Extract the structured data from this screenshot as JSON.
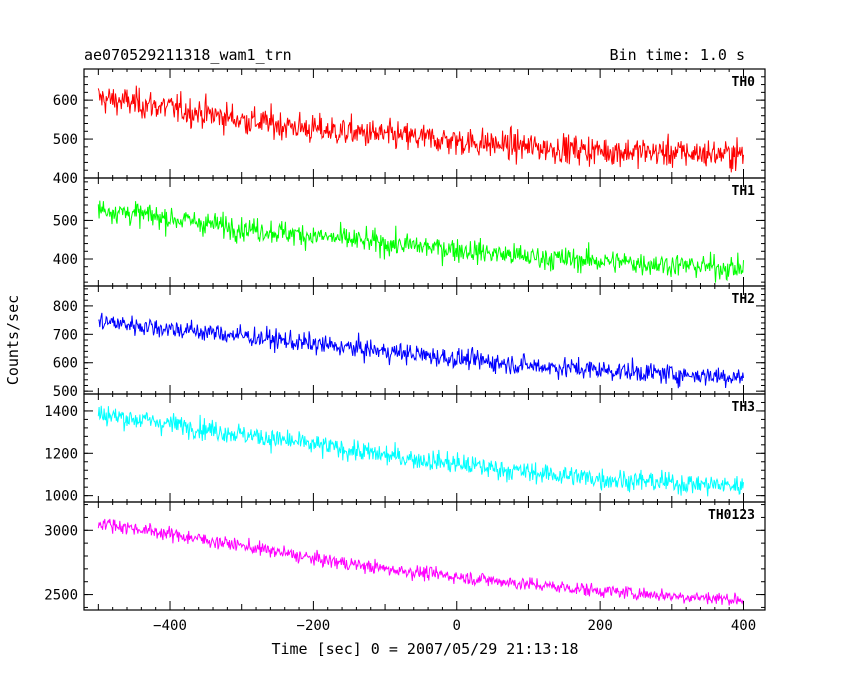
{
  "chart_data": {
    "type": "line",
    "title": "ae070529211318_wam1_trn",
    "subtitle": "Bin time: 1.0 s",
    "xlabel": "Time [sec] 0 = 2007/05/29 21:13:18",
    "ylabel": "Counts/sec",
    "xlim": [
      -520,
      430
    ],
    "x_range": [
      -500,
      400
    ],
    "x_ticks": [
      -400,
      -200,
      0,
      200,
      400
    ],
    "grid": false,
    "panels": [
      {
        "name": "TH0",
        "color": "#ff0000",
        "ylim": [
          400,
          680
        ],
        "y_ticks": [
          400,
          500,
          600
        ],
        "trend": [
          [
            -500,
            605
          ],
          [
            -400,
            580
          ],
          [
            -300,
            550
          ],
          [
            -200,
            525
          ],
          [
            -100,
            510
          ],
          [
            0,
            495
          ],
          [
            100,
            480
          ],
          [
            200,
            470
          ],
          [
            300,
            465
          ],
          [
            400,
            460
          ]
        ],
        "noise": 32
      },
      {
        "name": "TH1",
        "color": "#00ff00",
        "ylim": [
          330,
          610
        ],
        "y_ticks": [
          400,
          500
        ],
        "trend": [
          [
            -500,
            530
          ],
          [
            -400,
            505
          ],
          [
            -300,
            480
          ],
          [
            -200,
            460
          ],
          [
            -100,
            440
          ],
          [
            0,
            425
          ],
          [
            100,
            405
          ],
          [
            200,
            395
          ],
          [
            300,
            385
          ],
          [
            400,
            375
          ]
        ],
        "noise": 26
      },
      {
        "name": "TH2",
        "color": "#0000ff",
        "ylim": [
          490,
          870
        ],
        "y_ticks": [
          500,
          600,
          700,
          800
        ],
        "trend": [
          [
            -500,
            745
          ],
          [
            -400,
            720
          ],
          [
            -300,
            695
          ],
          [
            -200,
            665
          ],
          [
            -100,
            640
          ],
          [
            0,
            615
          ],
          [
            100,
            590
          ],
          [
            200,
            575
          ],
          [
            300,
            560
          ],
          [
            400,
            550
          ]
        ],
        "noise": 30
      },
      {
        "name": "TH3",
        "color": "#00ffff",
        "ylim": [
          970,
          1480
        ],
        "y_ticks": [
          1000,
          1200,
          1400
        ],
        "trend": [
          [
            -500,
            1385
          ],
          [
            -400,
            1340
          ],
          [
            -300,
            1290
          ],
          [
            -200,
            1240
          ],
          [
            -100,
            1190
          ],
          [
            0,
            1150
          ],
          [
            100,
            1110
          ],
          [
            200,
            1080
          ],
          [
            300,
            1060
          ],
          [
            400,
            1045
          ]
        ],
        "noise": 42
      },
      {
        "name": "TH0123",
        "color": "#ff00ff",
        "ylim": [
          2380,
          3220
        ],
        "y_ticks": [
          2500,
          3000
        ],
        "trend": [
          [
            -500,
            3060
          ],
          [
            -400,
            2970
          ],
          [
            -300,
            2880
          ],
          [
            -200,
            2780
          ],
          [
            -100,
            2700
          ],
          [
            0,
            2640
          ],
          [
            100,
            2580
          ],
          [
            200,
            2530
          ],
          [
            300,
            2490
          ],
          [
            400,
            2460
          ]
        ],
        "noise": 45
      }
    ]
  }
}
